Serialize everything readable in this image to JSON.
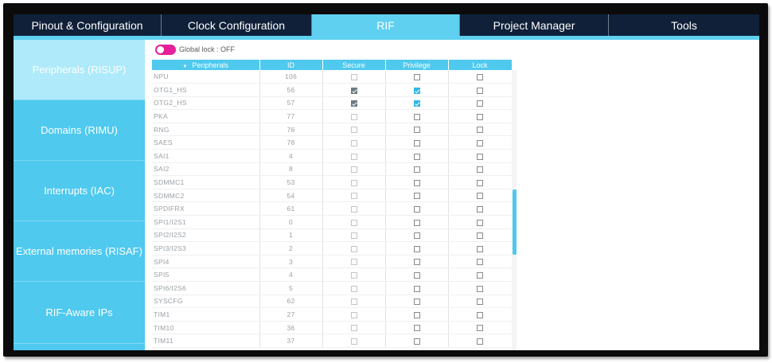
{
  "tabs": [
    {
      "label": "Pinout & Configuration"
    },
    {
      "label": "Clock Configuration"
    },
    {
      "label": "RIF"
    },
    {
      "label": "Project Manager"
    },
    {
      "label": "Tools"
    }
  ],
  "sidebar": {
    "items": [
      {
        "label": "Peripherals (RISUP)"
      },
      {
        "label": "Domains (RIMU)"
      },
      {
        "label": "Interrupts (IAC)"
      },
      {
        "label": "External memories (RISAF)"
      },
      {
        "label": "RIF-Aware IPs"
      }
    ]
  },
  "global_lock": {
    "label": "Global lock : OFF"
  },
  "table": {
    "headers": [
      "Peripherals",
      "ID",
      "Secure",
      "Privilege",
      "Lock"
    ],
    "rows": [
      {
        "name": "NPU",
        "id": "106",
        "secure": false,
        "privilege": false,
        "lock": false
      },
      {
        "name": "OTG1_HS",
        "id": "56",
        "secure": true,
        "privilege": true,
        "lock": false
      },
      {
        "name": "OTG2_HS",
        "id": "57",
        "secure": true,
        "privilege": true,
        "lock": false
      },
      {
        "name": "PKA",
        "id": "77",
        "secure": false,
        "privilege": false,
        "lock": false
      },
      {
        "name": "RNG",
        "id": "76",
        "secure": false,
        "privilege": false,
        "lock": false
      },
      {
        "name": "SAES",
        "id": "78",
        "secure": false,
        "privilege": false,
        "lock": false
      },
      {
        "name": "SAI1",
        "id": "4",
        "secure": false,
        "privilege": false,
        "lock": false
      },
      {
        "name": "SAI2",
        "id": "8",
        "secure": false,
        "privilege": false,
        "lock": false
      },
      {
        "name": "SDMMC1",
        "id": "53",
        "secure": false,
        "privilege": false,
        "lock": false
      },
      {
        "name": "SDMMC2",
        "id": "54",
        "secure": false,
        "privilege": false,
        "lock": false
      },
      {
        "name": "SPDIFRX",
        "id": "61",
        "secure": false,
        "privilege": false,
        "lock": false
      },
      {
        "name": "SPI1/I2S1",
        "id": "0",
        "secure": false,
        "privilege": false,
        "lock": false
      },
      {
        "name": "SPI2/I2S2",
        "id": "1",
        "secure": false,
        "privilege": false,
        "lock": false
      },
      {
        "name": "SPI3/I2S3",
        "id": "2",
        "secure": false,
        "privilege": false,
        "lock": false
      },
      {
        "name": "SPI4",
        "id": "3",
        "secure": false,
        "privilege": false,
        "lock": false
      },
      {
        "name": "SPI5",
        "id": "4",
        "secure": false,
        "privilege": false,
        "lock": false
      },
      {
        "name": "SPI6/I2S6",
        "id": "5",
        "secure": false,
        "privilege": false,
        "lock": false
      },
      {
        "name": "SYSCFG",
        "id": "62",
        "secure": false,
        "privilege": false,
        "lock": false
      },
      {
        "name": "TIM1",
        "id": "27",
        "secure": false,
        "privilege": false,
        "lock": false
      },
      {
        "name": "TIM10",
        "id": "36",
        "secure": false,
        "privilege": false,
        "lock": false
      },
      {
        "name": "TIM11",
        "id": "37",
        "secure": false,
        "privilege": false,
        "lock": false
      }
    ]
  },
  "colors": {
    "accent": "#4fc9ee",
    "tab_bg": "#0f2038",
    "toggle": "#e5209a"
  },
  "icons": {
    "sort": "sort-arrow-icon"
  }
}
